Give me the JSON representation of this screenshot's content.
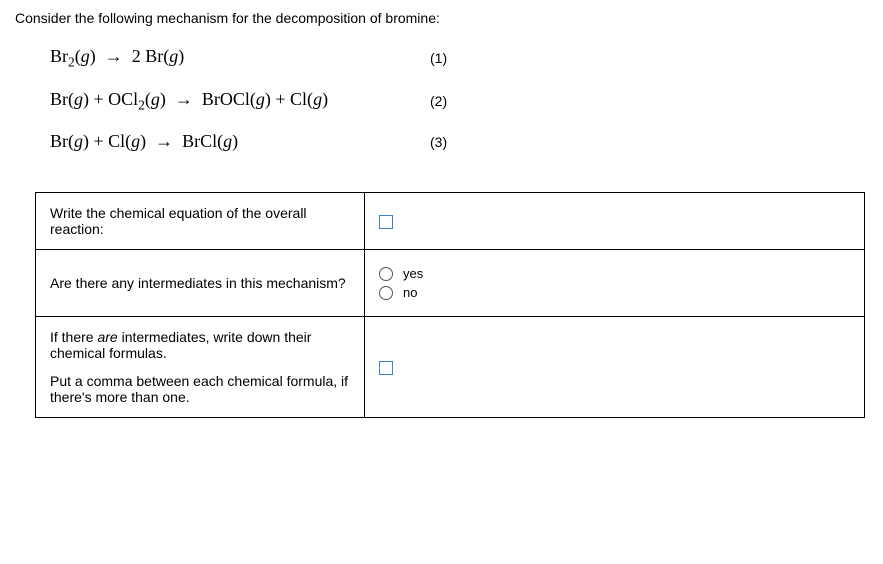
{
  "prompt": "Consider the following mechanism for the decomposition of bromine:",
  "equations": {
    "eq1": {
      "text": "Br₂(g)  →  2 Br(g)",
      "num": "(1)"
    },
    "eq2": {
      "text": "Br(g) + OCl₂(g)  →  BrOCl(g) + Cl(g)",
      "num": "(2)"
    },
    "eq3": {
      "text": "Br(g) + Cl(g)  →  BrCl(g)",
      "num": "(3)"
    }
  },
  "questions": {
    "q1": "Write the chemical equation of the overall reaction:",
    "q2": "Are there any intermediates in this mechanism?",
    "q3a": "If there are intermediates, write down their chemical formulas.",
    "q3b": "Put a comma between each chemical formula, if there's more than one."
  },
  "radios": {
    "yes": "yes",
    "no": "no"
  },
  "styling": {
    "font_body": "Arial",
    "font_eq": "Times New Roman",
    "fontsize_body": 14,
    "fontsize_eq": 18,
    "placeholder_border": "#3a7fd5",
    "table_border": "#000000",
    "background": "#ffffff",
    "text_color": "#000000"
  }
}
